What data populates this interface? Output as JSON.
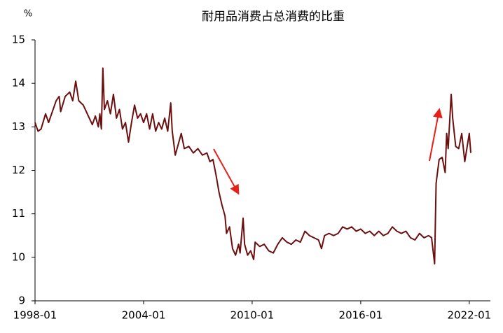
{
  "chart_data": {
    "type": "line",
    "title": "耐用品消费占总消费的比重",
    "y_unit": "%",
    "x": [
      "1998-01",
      "1998-03",
      "1998-05",
      "1998-08",
      "1998-10",
      "1999-01",
      "1999-03",
      "1999-05",
      "1999-06",
      "1999-09",
      "1999-12",
      "2000-02",
      "2000-04",
      "2000-06",
      "2000-09",
      "2000-11",
      "2001-01",
      "2001-03",
      "2001-05",
      "2001-07",
      "2001-08",
      "2001-09",
      "2001-10",
      "2001-11",
      "2002-01",
      "2002-03",
      "2002-05",
      "2002-07",
      "2002-09",
      "2002-11",
      "2003-01",
      "2003-03",
      "2003-05",
      "2003-07",
      "2003-09",
      "2003-11",
      "2004-01",
      "2004-03",
      "2004-05",
      "2004-07",
      "2004-09",
      "2004-11",
      "2005-01",
      "2005-03",
      "2005-05",
      "2005-07",
      "2005-08",
      "2005-10",
      "2005-12",
      "2006-02",
      "2006-04",
      "2006-07",
      "2006-10",
      "2007-01",
      "2007-04",
      "2007-07",
      "2007-09",
      "2007-11",
      "2008-01",
      "2008-03",
      "2008-05",
      "2008-07",
      "2008-08",
      "2008-10",
      "2008-12",
      "2009-02",
      "2009-04",
      "2009-05",
      "2009-07",
      "2009-08",
      "2009-10",
      "2009-12",
      "2010-02",
      "2010-03",
      "2010-06",
      "2010-09",
      "2010-12",
      "2011-03",
      "2011-06",
      "2011-09",
      "2011-12",
      "2012-03",
      "2012-06",
      "2012-09",
      "2012-12",
      "2013-03",
      "2013-06",
      "2013-09",
      "2013-11",
      "2014-01",
      "2014-04",
      "2014-07",
      "2014-10",
      "2015-01",
      "2015-04",
      "2015-07",
      "2015-10",
      "2016-01",
      "2016-04",
      "2016-07",
      "2016-10",
      "2017-01",
      "2017-04",
      "2017-07",
      "2017-10",
      "2018-01",
      "2018-04",
      "2018-07",
      "2018-10",
      "2019-01",
      "2019-04",
      "2019-07",
      "2019-10",
      "2019-12",
      "2020-02",
      "2020-03",
      "2020-05",
      "2020-07",
      "2020-09",
      "2020-10",
      "2020-11",
      "2021-01",
      "2021-02",
      "2021-04",
      "2021-06",
      "2021-08",
      "2021-10",
      "2022-01",
      "2022-02"
    ],
    "series": [
      {
        "color": "#6b0f0f",
        "values": [
          13.1,
          12.9,
          12.95,
          13.3,
          13.1,
          13.4,
          13.6,
          13.7,
          13.35,
          13.7,
          13.8,
          13.6,
          14.05,
          13.6,
          13.5,
          13.35,
          13.2,
          13.05,
          13.25,
          13.0,
          13.3,
          12.95,
          14.35,
          13.4,
          13.6,
          13.3,
          13.75,
          13.2,
          13.4,
          12.95,
          13.1,
          12.65,
          13.1,
          13.5,
          13.2,
          13.3,
          13.1,
          13.3,
          12.95,
          13.3,
          12.9,
          13.1,
          12.95,
          13.2,
          12.9,
          13.55,
          12.9,
          12.35,
          12.6,
          12.85,
          12.5,
          12.55,
          12.4,
          12.5,
          12.35,
          12.4,
          12.2,
          12.25,
          11.9,
          11.5,
          11.2,
          10.95,
          10.55,
          10.7,
          10.2,
          10.05,
          10.3,
          10.1,
          10.9,
          10.3,
          10.05,
          10.15,
          9.95,
          10.35,
          10.25,
          10.3,
          10.15,
          10.1,
          10.3,
          10.45,
          10.35,
          10.3,
          10.4,
          10.35,
          10.6,
          10.5,
          10.45,
          10.4,
          10.2,
          10.5,
          10.55,
          10.5,
          10.55,
          10.7,
          10.65,
          10.7,
          10.6,
          10.65,
          10.55,
          10.6,
          10.5,
          10.6,
          10.5,
          10.55,
          10.7,
          10.6,
          10.55,
          10.6,
          10.45,
          10.4,
          10.55,
          10.45,
          10.5,
          10.45,
          9.85,
          11.7,
          12.25,
          12.3,
          11.95,
          12.85,
          12.5,
          13.75,
          13.2,
          12.55,
          12.5,
          12.85,
          12.2,
          12.85,
          12.4
        ]
      }
    ],
    "xlim": [
      "1998-01",
      "2023-03"
    ],
    "xticks": [
      "1998-01",
      "2004-01",
      "2010-01",
      "2016-01",
      "2022-01"
    ],
    "ylim": [
      9,
      15
    ],
    "yticks": [
      9,
      10,
      11,
      12,
      13,
      14,
      15
    ],
    "grid": false
  }
}
